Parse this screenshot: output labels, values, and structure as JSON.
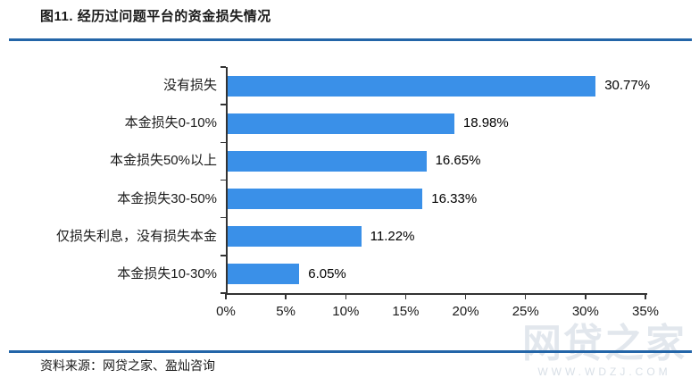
{
  "page": {
    "title": "图11. 经历过问题平台的资金损失情况",
    "source": "资料来源：网贷之家、盈灿咨询"
  },
  "watermark": {
    "brand": "网贷之家",
    "url": "WWW.WDZJ.COM"
  },
  "colors": {
    "bar": "#3a90e8",
    "divider": "#2365a8",
    "axis": "#333333",
    "text": "#1a1a1a"
  },
  "chart_data": {
    "type": "bar",
    "orientation": "horizontal",
    "title": "图11. 经历过问题平台的资金损失情况",
    "categories": [
      "没有损失",
      "本金损失0-10%",
      "本金损失50%以上",
      "本金损失30-50%",
      "仅损失利息，没有损失本金",
      "本金损失10-30%"
    ],
    "values": [
      30.77,
      18.98,
      16.65,
      16.33,
      11.22,
      6.05
    ],
    "value_labels": [
      "30.77%",
      "18.98%",
      "16.65%",
      "16.33%",
      "11.22%",
      "6.05%"
    ],
    "x_tick_labels": [
      "0%",
      "5%",
      "10%",
      "15%",
      "20%",
      "25%",
      "30%",
      "35%"
    ],
    "x_tick_values": [
      0,
      5,
      10,
      15,
      20,
      25,
      30,
      35
    ],
    "xlim": [
      0,
      35
    ],
    "xlabel": "",
    "ylabel": "",
    "grid": false,
    "legend": null,
    "bar_color": "#3a90e8"
  }
}
